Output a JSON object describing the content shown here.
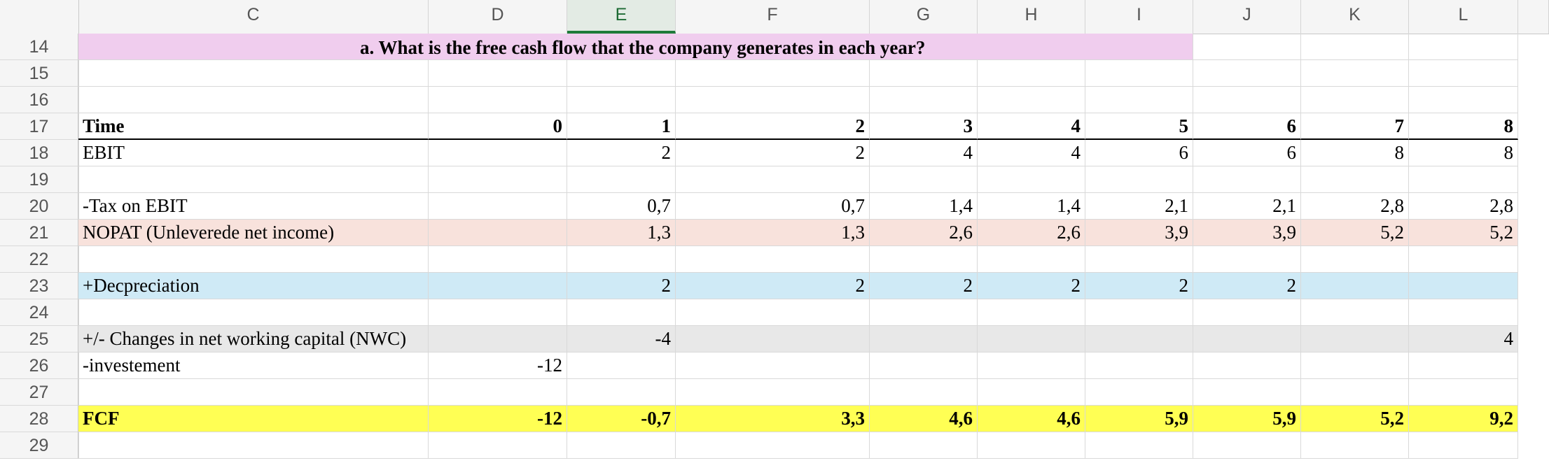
{
  "columns": [
    "C",
    "D",
    "E",
    "F",
    "G",
    "H",
    "I",
    "J",
    "K",
    "L"
  ],
  "selected_column": "E",
  "rows": {
    "r14": {
      "num": "14",
      "question": "a. What is the free cash flow that the company generates in each year?"
    },
    "r15": {
      "num": "15"
    },
    "r16": {
      "num": "16"
    },
    "r17": {
      "num": "17",
      "label": "Time",
      "values": [
        "0",
        "1",
        "2",
        "3",
        "4",
        "5",
        "6",
        "7",
        "8"
      ]
    },
    "r18": {
      "num": "18",
      "label": "EBIT",
      "values": [
        "",
        "2",
        "2",
        "4",
        "4",
        "6",
        "6",
        "8",
        "8"
      ]
    },
    "r19": {
      "num": "19"
    },
    "r20": {
      "num": "20",
      "label": "-Tax on EBIT",
      "values": [
        "",
        "0,7",
        "0,7",
        "1,4",
        "1,4",
        "2,1",
        "2,1",
        "2,8",
        "2,8"
      ]
    },
    "r21": {
      "num": "21",
      "label": "NOPAT (Unleverede net income)",
      "values": [
        "",
        "1,3",
        "1,3",
        "2,6",
        "2,6",
        "3,9",
        "3,9",
        "5,2",
        "5,2"
      ]
    },
    "r22": {
      "num": "22"
    },
    "r23": {
      "num": "23",
      "label": "+Decpreciation",
      "values": [
        "",
        "2",
        "2",
        "2",
        "2",
        "2",
        "2",
        "",
        ""
      ]
    },
    "r24": {
      "num": "24"
    },
    "r25": {
      "num": "25",
      "label": "+/- Changes in net working capital (NWC)",
      "values": [
        "",
        "-4",
        "",
        "",
        "",
        "",
        "",
        "",
        "4"
      ]
    },
    "r26": {
      "num": "26",
      "label": "-investement",
      "values": [
        "-12",
        "",
        "",
        "",
        "",
        "",
        "",
        "",
        ""
      ]
    },
    "r27": {
      "num": "27"
    },
    "r28": {
      "num": "28",
      "label": "FCF",
      "values": [
        "-12",
        "-0,7",
        "3,3",
        "4,6",
        "4,6",
        "5,9",
        "5,9",
        "5,2",
        "9,2"
      ]
    },
    "r29": {
      "num": "29"
    }
  },
  "colors": {
    "pink": "#f0cdee",
    "salmon": "#f8e2dc",
    "blue": "#cfeaf6",
    "gray": "#e8e8e8",
    "yellow": "#ffff54",
    "selected_header": "#1e7b3a"
  }
}
